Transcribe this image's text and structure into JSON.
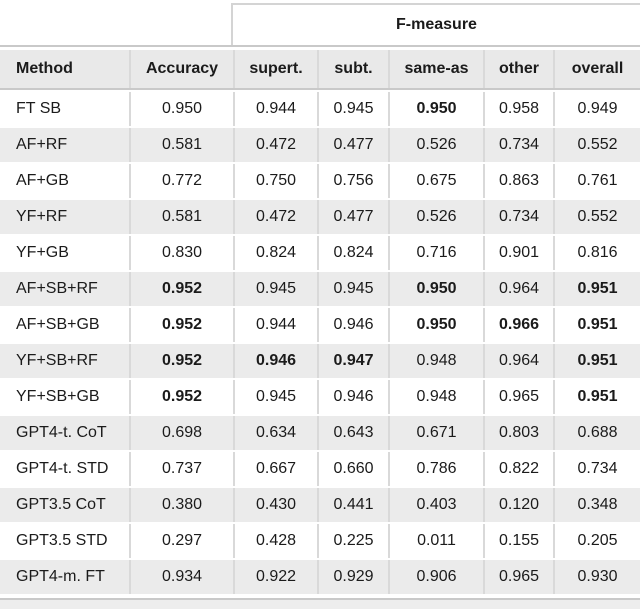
{
  "table": {
    "group_header": "F-measure",
    "columns": [
      "Method",
      "Accuracy",
      "supert.",
      "subt.",
      "same-as",
      "other",
      "overall"
    ],
    "rows": [
      {
        "method": "FT SB",
        "values": [
          "0.950",
          "0.944",
          "0.945",
          "0.950",
          "0.958",
          "0.949"
        ],
        "bold": [
          false,
          false,
          false,
          true,
          false,
          false
        ]
      },
      {
        "method": "AF+RF",
        "values": [
          "0.581",
          "0.472",
          "0.477",
          "0.526",
          "0.734",
          "0.552"
        ],
        "bold": [
          false,
          false,
          false,
          false,
          false,
          false
        ]
      },
      {
        "method": "AF+GB",
        "values": [
          "0.772",
          "0.750",
          "0.756",
          "0.675",
          "0.863",
          "0.761"
        ],
        "bold": [
          false,
          false,
          false,
          false,
          false,
          false
        ]
      },
      {
        "method": "YF+RF",
        "values": [
          "0.581",
          "0.472",
          "0.477",
          "0.526",
          "0.734",
          "0.552"
        ],
        "bold": [
          false,
          false,
          false,
          false,
          false,
          false
        ]
      },
      {
        "method": "YF+GB",
        "values": [
          "0.830",
          "0.824",
          "0.824",
          "0.716",
          "0.901",
          "0.816"
        ],
        "bold": [
          false,
          false,
          false,
          false,
          false,
          false
        ]
      },
      {
        "method": "AF+SB+RF",
        "values": [
          "0.952",
          "0.945",
          "0.945",
          "0.950",
          "0.964",
          "0.951"
        ],
        "bold": [
          true,
          false,
          false,
          true,
          false,
          true
        ]
      },
      {
        "method": "AF+SB+GB",
        "values": [
          "0.952",
          "0.944",
          "0.946",
          "0.950",
          "0.966",
          "0.951"
        ],
        "bold": [
          true,
          false,
          false,
          true,
          true,
          true
        ]
      },
      {
        "method": "YF+SB+RF",
        "values": [
          "0.952",
          "0.946",
          "0.947",
          "0.948",
          "0.964",
          "0.951"
        ],
        "bold": [
          true,
          true,
          true,
          false,
          false,
          true
        ]
      },
      {
        "method": "YF+SB+GB",
        "values": [
          "0.952",
          "0.945",
          "0.946",
          "0.948",
          "0.965",
          "0.951"
        ],
        "bold": [
          true,
          false,
          false,
          false,
          false,
          true
        ]
      },
      {
        "method": "GPT4-t. CoT",
        "values": [
          "0.698",
          "0.634",
          "0.643",
          "0.671",
          "0.803",
          "0.688"
        ],
        "bold": [
          false,
          false,
          false,
          false,
          false,
          false
        ]
      },
      {
        "method": "GPT4-t. STD",
        "values": [
          "0.737",
          "0.667",
          "0.660",
          "0.786",
          "0.822",
          "0.734"
        ],
        "bold": [
          false,
          false,
          false,
          false,
          false,
          false
        ]
      },
      {
        "method": "GPT3.5 CoT",
        "values": [
          "0.380",
          "0.430",
          "0.441",
          "0.403",
          "0.120",
          "0.348"
        ],
        "bold": [
          false,
          false,
          false,
          false,
          false,
          false
        ]
      },
      {
        "method": "GPT3.5 STD",
        "values": [
          "0.297",
          "0.428",
          "0.225",
          "0.011",
          "0.155",
          "0.205"
        ],
        "bold": [
          false,
          false,
          false,
          false,
          false,
          false
        ]
      },
      {
        "method": "GPT4-m. FT",
        "values": [
          "0.934",
          "0.922",
          "0.929",
          "0.906",
          "0.965",
          "0.930"
        ],
        "bold": [
          false,
          false,
          false,
          false,
          false,
          false
        ]
      }
    ]
  },
  "colors": {
    "header_bg": "#e9e9e9",
    "alt_row_bg": "#ebebeb",
    "rule": "#c9c9c9",
    "rule_light": "#d4d4d4",
    "separator": "#d9d9d9",
    "text": "#1b1b1b"
  }
}
